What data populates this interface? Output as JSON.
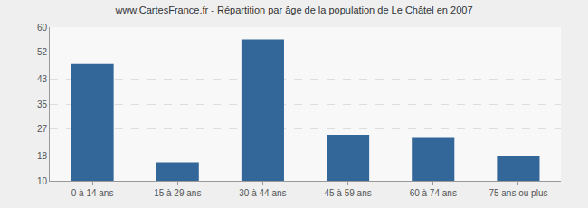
{
  "chart_data": {
    "type": "bar",
    "title": "www.CartesFrance.fr - Répartition par âge de la population de Le Châtel en 2007",
    "categories": [
      "0 à 14 ans",
      "15 à 29 ans",
      "30 à 44 ans",
      "45 à 59 ans",
      "60 à 74 ans",
      "75 ans ou plus"
    ],
    "values": [
      48,
      16,
      56,
      25,
      24,
      18
    ],
    "color": "#336699",
    "ylim": [
      10,
      60
    ],
    "yticks": [
      10,
      18,
      27,
      35,
      43,
      52,
      60
    ],
    "grid": true
  }
}
